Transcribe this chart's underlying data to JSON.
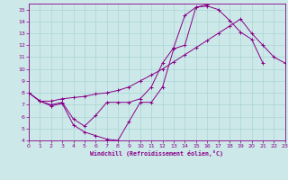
{
  "bg_color": "#cce8e8",
  "grid_color": "#aad4d4",
  "line_color": "#880088",
  "xlabel": "Windchill (Refroidissement éolien,°C)",
  "xlim": [
    0,
    23
  ],
  "ylim": [
    4,
    15.5
  ],
  "yticks": [
    4,
    5,
    6,
    7,
    8,
    9,
    10,
    11,
    12,
    13,
    14,
    15
  ],
  "xticks": [
    0,
    1,
    2,
    3,
    4,
    5,
    6,
    7,
    8,
    9,
    10,
    11,
    12,
    13,
    14,
    15,
    16,
    17,
    18,
    19,
    20,
    21,
    22,
    23
  ],
  "curve1_x": [
    0,
    1,
    2,
    3,
    4,
    5,
    6,
    7,
    8,
    9,
    10,
    11,
    12,
    13,
    14,
    15,
    16,
    17,
    18,
    19,
    20,
    21
  ],
  "curve1_y": [
    8.0,
    7.3,
    6.9,
    7.1,
    5.3,
    4.7,
    4.4,
    4.1,
    4.0,
    5.6,
    7.2,
    7.2,
    8.5,
    11.7,
    12.0,
    15.2,
    15.3,
    15.0,
    14.1,
    13.1,
    12.5,
    10.5
  ],
  "curve2_x": [
    0,
    1,
    2,
    3,
    4,
    5,
    6,
    7,
    8,
    9,
    10,
    11,
    12,
    13,
    14,
    15,
    16
  ],
  "curve2_y": [
    8.0,
    7.3,
    7.0,
    7.2,
    5.8,
    5.2,
    6.1,
    7.2,
    7.2,
    7.2,
    7.5,
    8.5,
    10.5,
    11.8,
    14.5,
    15.2,
    15.4
  ],
  "curve3_x": [
    0,
    1,
    2,
    3,
    4,
    5,
    6,
    7,
    8,
    9,
    10,
    11,
    12,
    13,
    14,
    15,
    16,
    17,
    18,
    19,
    20,
    21,
    22,
    23
  ],
  "curve3_y": [
    8.0,
    7.3,
    7.3,
    7.5,
    7.6,
    7.7,
    7.9,
    8.0,
    8.2,
    8.5,
    9.0,
    9.5,
    10.0,
    10.6,
    11.2,
    11.8,
    12.4,
    13.0,
    13.6,
    14.2,
    13.0,
    12.0,
    11.0,
    10.5
  ]
}
